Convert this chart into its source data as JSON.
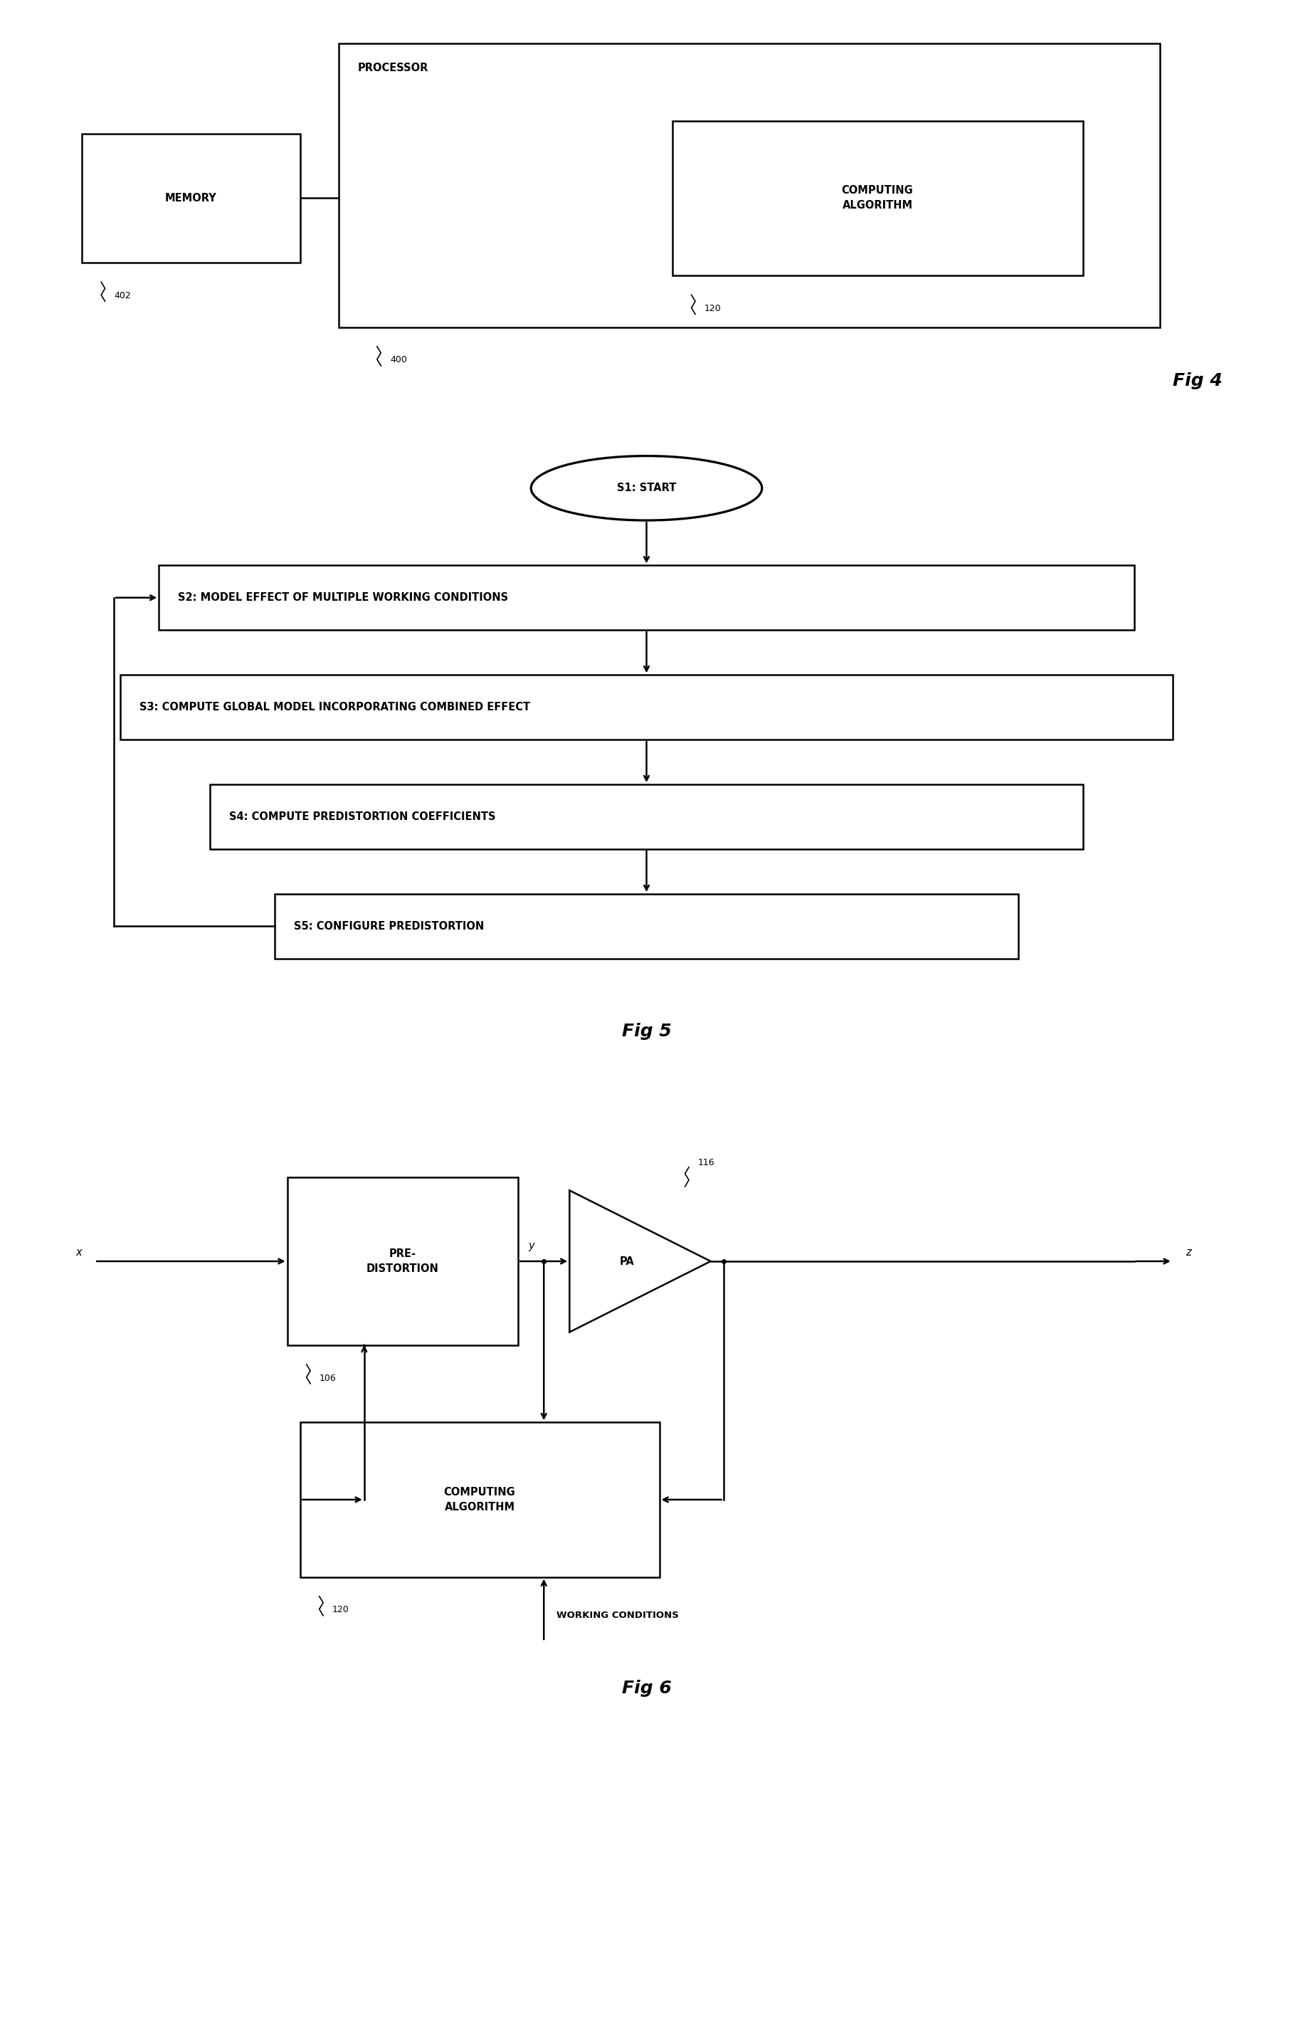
{
  "fig4": {
    "title": "Fig 4",
    "processor_label": "PROCESSOR",
    "memory_label": "MEMORY",
    "memory_ref": "402",
    "computing_label": "COMPUTING\nALGORITHM",
    "computing_ref": "120",
    "processor_ref": "400"
  },
  "fig5": {
    "title": "Fig 5",
    "steps": [
      {
        "id": "S1",
        "label": "S1: START",
        "shape": "ellipse"
      },
      {
        "id": "S2",
        "label": "S2: MODEL EFFECT OF MULTIPLE WORKING CONDITIONS",
        "shape": "rect"
      },
      {
        "id": "S3",
        "label": "S3: COMPUTE GLOBAL MODEL INCORPORATING COMBINED EFFECT",
        "shape": "rect"
      },
      {
        "id": "S4",
        "label": "S4: COMPUTE PREDISTORTION COEFFICIENTS",
        "shape": "rect"
      },
      {
        "id": "S5",
        "label": "S5: CONFIGURE PREDISTORTION",
        "shape": "rect"
      }
    ]
  },
  "fig6": {
    "title": "Fig 6",
    "predist_label": "PRE-\nDISTORTION",
    "predist_ref": "106",
    "pa_label": "PA",
    "pa_ref": "116",
    "comp_label": "COMPUTING\nALGORITHM",
    "comp_ref": "120",
    "x_label": "x",
    "y_label": "y",
    "z_label": "z",
    "working_cond": "WORKING CONDITIONS"
  },
  "colors": {
    "box_edge": "#000000",
    "box_fill": "#ffffff",
    "text": "#000000",
    "background": "#ffffff"
  }
}
